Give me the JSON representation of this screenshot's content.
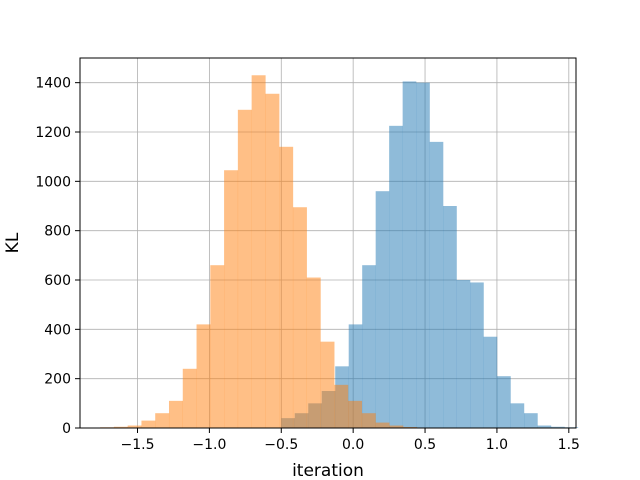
{
  "chart_data": {
    "type": "bar",
    "title": "",
    "xlabel": "iteration",
    "ylabel": "KL",
    "xlim": [
      -1.9,
      1.55
    ],
    "ylim": [
      0,
      1500
    ],
    "grid": true,
    "x_ticks": [
      -1.5,
      -1.0,
      -0.5,
      0.0,
      0.5,
      1.0,
      1.5
    ],
    "x_tick_labels": [
      "−1.5",
      "−1.0",
      "−0.5",
      "0.0",
      "0.5",
      "1.0",
      "1.5"
    ],
    "y_ticks": [
      0,
      200,
      400,
      600,
      800,
      1000,
      1200,
      1400
    ],
    "y_tick_labels": [
      "0",
      "200",
      "400",
      "600",
      "800",
      "1000",
      "1200",
      "1400"
    ],
    "series": [
      {
        "color": "#1f77b4",
        "opacity": 0.5,
        "bin_start": -0.5,
        "bin_width": 0.0938,
        "values": [
          40,
          60,
          100,
          150,
          250,
          420,
          660,
          960,
          1225,
          1405,
          1400,
          1160,
          900,
          600,
          590,
          370,
          210,
          100,
          60,
          10,
          5,
          3
        ]
      },
      {
        "color": "#ff7f0e",
        "opacity": 0.5,
        "bin_start": -1.76,
        "bin_width": 0.0958,
        "values": [
          3,
          5,
          10,
          30,
          60,
          110,
          240,
          420,
          660,
          1045,
          1290,
          1430,
          1355,
          1140,
          895,
          610,
          350,
          175,
          110,
          60,
          22,
          10,
          4,
          1
        ]
      }
    ]
  }
}
